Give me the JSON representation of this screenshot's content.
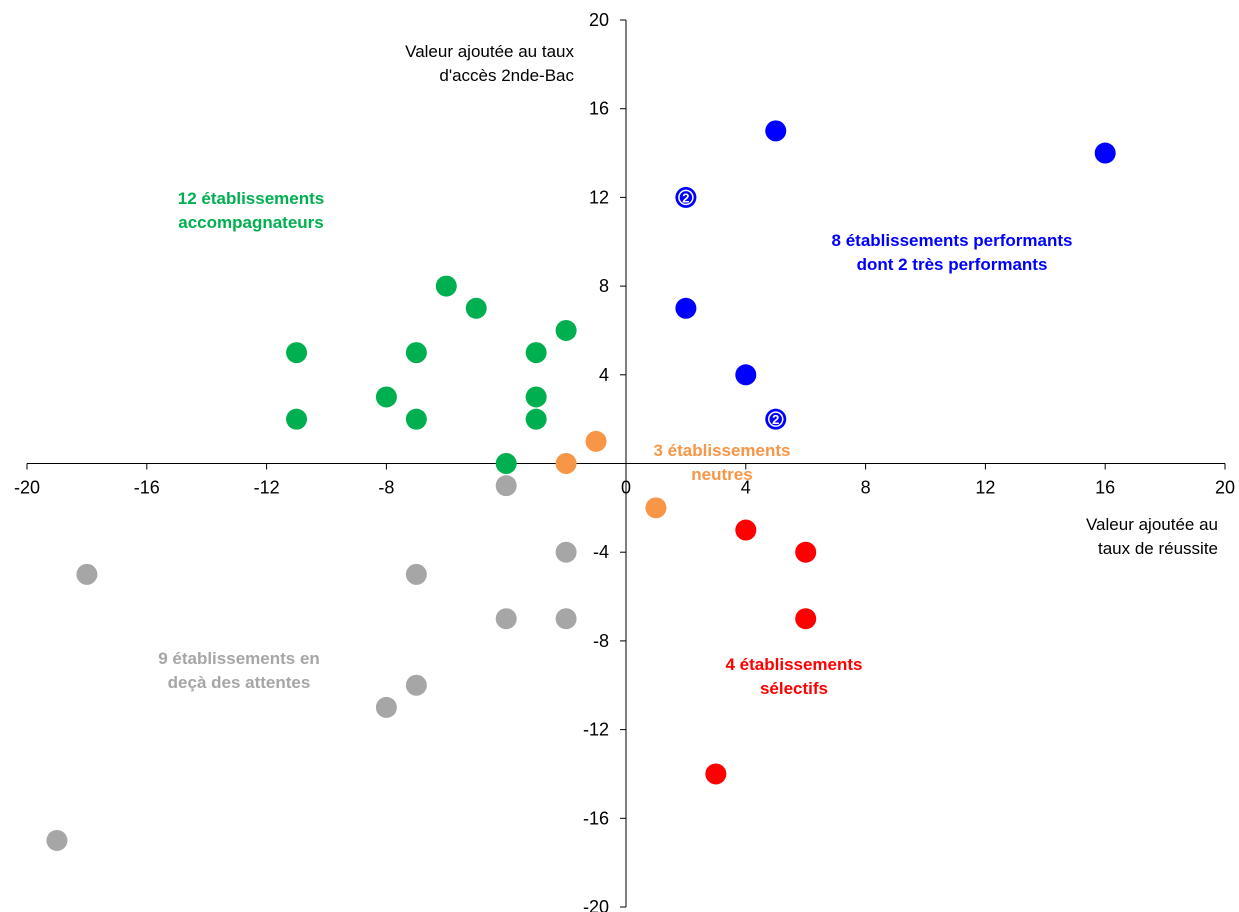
{
  "chart_data": {
    "type": "scatter",
    "xlim": [
      -20,
      20
    ],
    "ylim": [
      -20,
      20
    ],
    "xticks": [
      -20,
      -16,
      -12,
      -8,
      -4,
      0,
      4,
      8,
      12,
      16,
      20
    ],
    "yticks": [
      -20,
      -16,
      -12,
      -8,
      -4,
      0,
      4,
      8,
      12,
      16,
      20
    ],
    "xlabel": [
      "Valeur ajoutée au",
      "taux de réussite"
    ],
    "ylabel": [
      "Valeur ajoutée au taux",
      "d'accès 2nde-Bac"
    ],
    "grid": false,
    "series": [
      {
        "color": "#00b050",
        "label": [
          "12 établissements",
          "accompagnateurs"
        ],
        "points": [
          [
            -11,
            5
          ],
          [
            -11,
            2
          ],
          [
            -8,
            3
          ],
          [
            -7,
            5
          ],
          [
            -7,
            2
          ],
          [
            -6,
            8
          ],
          [
            -5,
            7
          ],
          [
            -4,
            0
          ],
          [
            -3,
            5
          ],
          [
            -3,
            3
          ],
          [
            -3,
            2
          ],
          [
            -2,
            6
          ]
        ]
      },
      {
        "color": "#0000ff",
        "label": [
          "8 établissements performants",
          "dont 2 très performants"
        ],
        "points": [
          [
            2,
            12,
            "2"
          ],
          [
            2,
            7
          ],
          [
            4,
            4
          ],
          [
            5,
            15
          ],
          [
            5,
            2,
            "2"
          ],
          [
            16,
            14
          ]
        ]
      },
      {
        "color": "#f79646",
        "label": [
          "3 établissements",
          "neutres"
        ],
        "points": [
          [
            -1,
            1
          ],
          [
            -2,
            0
          ],
          [
            1,
            -2
          ]
        ]
      },
      {
        "color": "#ff0000",
        "label": [
          "4 établissements",
          "sélectifs"
        ],
        "points": [
          [
            4,
            -3
          ],
          [
            6,
            -4
          ],
          [
            6,
            -7
          ],
          [
            3,
            -14
          ]
        ]
      },
      {
        "color": "#a6a6a6",
        "label": [
          "9 établissements en",
          "deçà des attentes"
        ],
        "points": [
          [
            -4,
            -1
          ],
          [
            -2,
            -4
          ],
          [
            -18,
            -5
          ],
          [
            -7,
            -5
          ],
          [
            -4,
            -7
          ],
          [
            -2,
            -7
          ],
          [
            -7,
            -10
          ],
          [
            -8,
            -11
          ],
          [
            -19,
            -17
          ]
        ]
      }
    ]
  }
}
